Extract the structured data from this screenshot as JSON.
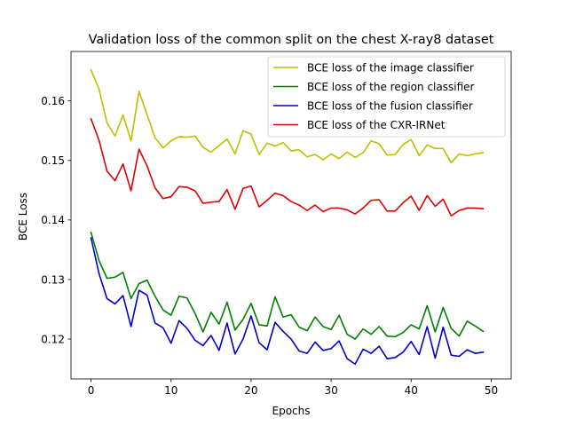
{
  "chart_data": {
    "type": "line",
    "title": "Validation loss of the common split on the chest X-ray8 dataset",
    "xlabel": "Epochs",
    "ylabel": "BCE Loss",
    "xlim": [
      -2.5,
      52.5
    ],
    "ylim": [
      0.1133,
      0.1683
    ],
    "xticks": [
      0,
      10,
      20,
      30,
      40,
      50
    ],
    "yticks": [
      0.12,
      0.13,
      0.14,
      0.15,
      0.16
    ],
    "ytick_labels": [
      "0.12",
      "0.13",
      "0.14",
      "0.15",
      "0.16"
    ],
    "grid": false,
    "legend": "upper right",
    "x": [
      0,
      1,
      2,
      3,
      4,
      5,
      6,
      7,
      8,
      9,
      10,
      11,
      12,
      13,
      14,
      15,
      16,
      17,
      18,
      19,
      20,
      21,
      22,
      23,
      24,
      25,
      26,
      27,
      28,
      29,
      30,
      31,
      32,
      33,
      34,
      35,
      36,
      37,
      38,
      39,
      40,
      41,
      42,
      43,
      44,
      45,
      46,
      47,
      48,
      49
    ],
    "series": [
      {
        "name": "BCE loss of the image classifier",
        "color": "#bfbf00",
        "values": [
          0.1652,
          0.162,
          0.1563,
          0.1541,
          0.1576,
          0.1533,
          0.1616,
          0.1577,
          0.1538,
          0.1521,
          0.1533,
          0.154,
          0.1539,
          0.1541,
          0.1522,
          0.1514,
          0.1525,
          0.1536,
          0.1511,
          0.155,
          0.1544,
          0.151,
          0.1529,
          0.1524,
          0.153,
          0.1516,
          0.1518,
          0.1506,
          0.151,
          0.1501,
          0.1511,
          0.1503,
          0.1514,
          0.1505,
          0.1513,
          0.1533,
          0.1528,
          0.1509,
          0.151,
          0.1527,
          0.1535,
          0.1508,
          0.1526,
          0.152,
          0.152,
          0.1496,
          0.1511,
          0.1508,
          0.1511,
          0.1513
        ]
      },
      {
        "name": "BCE loss of the region classifier",
        "color": "#008000",
        "values": [
          0.1379,
          0.1332,
          0.1302,
          0.1304,
          0.1312,
          0.1268,
          0.1293,
          0.1299,
          0.1272,
          0.1249,
          0.124,
          0.1272,
          0.1269,
          0.1243,
          0.1212,
          0.1245,
          0.1225,
          0.1262,
          0.1215,
          0.1233,
          0.126,
          0.1224,
          0.1222,
          0.1271,
          0.1237,
          0.1241,
          0.122,
          0.1214,
          0.1237,
          0.1221,
          0.1216,
          0.124,
          0.1208,
          0.12,
          0.1217,
          0.1208,
          0.1221,
          0.1205,
          0.1204,
          0.1211,
          0.1224,
          0.1217,
          0.1256,
          0.1212,
          0.1253,
          0.1218,
          0.1205,
          0.123,
          0.1222,
          0.1213
        ]
      },
      {
        "name": "BCE loss of the fusion classifier",
        "color": "#0000cc",
        "values": [
          0.137,
          0.131,
          0.1268,
          0.1259,
          0.1273,
          0.1221,
          0.1282,
          0.1274,
          0.1227,
          0.1219,
          0.1193,
          0.1231,
          0.1218,
          0.1198,
          0.1189,
          0.1206,
          0.1181,
          0.1227,
          0.1175,
          0.12,
          0.1239,
          0.1194,
          0.1182,
          0.1228,
          0.1213,
          0.12,
          0.118,
          0.1176,
          0.1195,
          0.1181,
          0.1184,
          0.1197,
          0.1167,
          0.1158,
          0.1183,
          0.1176,
          0.1188,
          0.1167,
          0.1169,
          0.1178,
          0.1196,
          0.1174,
          0.1221,
          0.1168,
          0.122,
          0.1173,
          0.1171,
          0.1182,
          0.1176,
          0.1178
        ]
      },
      {
        "name": "BCE loss of the CXR-IRNet",
        "color": "#e00000",
        "values": [
          0.157,
          0.1534,
          0.1482,
          0.1466,
          0.1494,
          0.1449,
          0.1519,
          0.1491,
          0.1454,
          0.1436,
          0.1439,
          0.1456,
          0.1455,
          0.1449,
          0.1428,
          0.143,
          0.1431,
          0.1451,
          0.1418,
          0.1453,
          0.1457,
          0.1422,
          0.1433,
          0.1445,
          0.1441,
          0.1431,
          0.1425,
          0.1416,
          0.1425,
          0.1414,
          0.142,
          0.142,
          0.1417,
          0.141,
          0.142,
          0.1433,
          0.1434,
          0.1415,
          0.1415,
          0.1429,
          0.144,
          0.1416,
          0.1441,
          0.1423,
          0.1435,
          0.1407,
          0.1416,
          0.142,
          0.142,
          0.1419
        ]
      }
    ]
  }
}
